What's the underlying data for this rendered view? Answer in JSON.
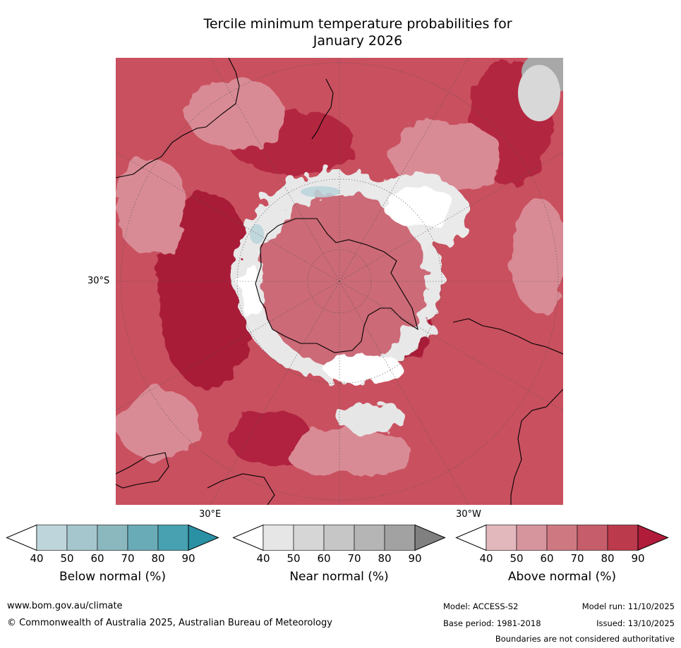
{
  "title": {
    "line1": "Tercile minimum temperature probabilities for",
    "line2": "January 2026"
  },
  "map": {
    "axis_labels": {
      "lat_label": "30°S",
      "lon_label_east": "30°E",
      "lon_label_west": "30°W"
    },
    "colors": {
      "above_base": "#c9505f",
      "above_dark": "#a81d38",
      "above_light": "#d98b95",
      "above_pale": "#e3b5bb",
      "near_normal": "#e8e8e8",
      "near_dark": "#a8a8a8",
      "below_light": "#b9d3da",
      "land_outline": "#000000"
    }
  },
  "colorbars": [
    {
      "id": "below",
      "title": "Below normal (%)",
      "ticks": [
        "40",
        "50",
        "60",
        "70",
        "80",
        "90"
      ],
      "colors": [
        "#ffffff",
        "#bfd5dc",
        "#a6c6cd",
        "#8bb8bf",
        "#6aabb8",
        "#47a1b1",
        "#2a91a5"
      ]
    },
    {
      "id": "near",
      "title": "Near normal (%)",
      "ticks": [
        "40",
        "50",
        "60",
        "70",
        "80",
        "90"
      ],
      "colors": [
        "#ffffff",
        "#e6e6e6",
        "#d6d6d6",
        "#c6c6c6",
        "#b5b5b5",
        "#a2a2a2",
        "#808080"
      ]
    },
    {
      "id": "above",
      "title": "Above normal (%)",
      "ticks": [
        "40",
        "50",
        "60",
        "70",
        "80",
        "90"
      ],
      "colors": [
        "#ffffff",
        "#e3b8bd",
        "#d6959d",
        "#ce7881",
        "#c65d6a",
        "#bb3a4b",
        "#b01c3a"
      ]
    }
  ],
  "footer": {
    "website": "www.bom.gov.au/climate",
    "copyright": "© Commonwealth of Australia 2025, Australian Bureau of Meteorology",
    "model": "Model: ACCESS-S2",
    "model_run": "Model run: 11/10/2025",
    "base_period": "Base period: 1981-2018",
    "issued": "Issued: 13/10/2025",
    "disclaimer": "Boundaries are not considered authoritative"
  }
}
